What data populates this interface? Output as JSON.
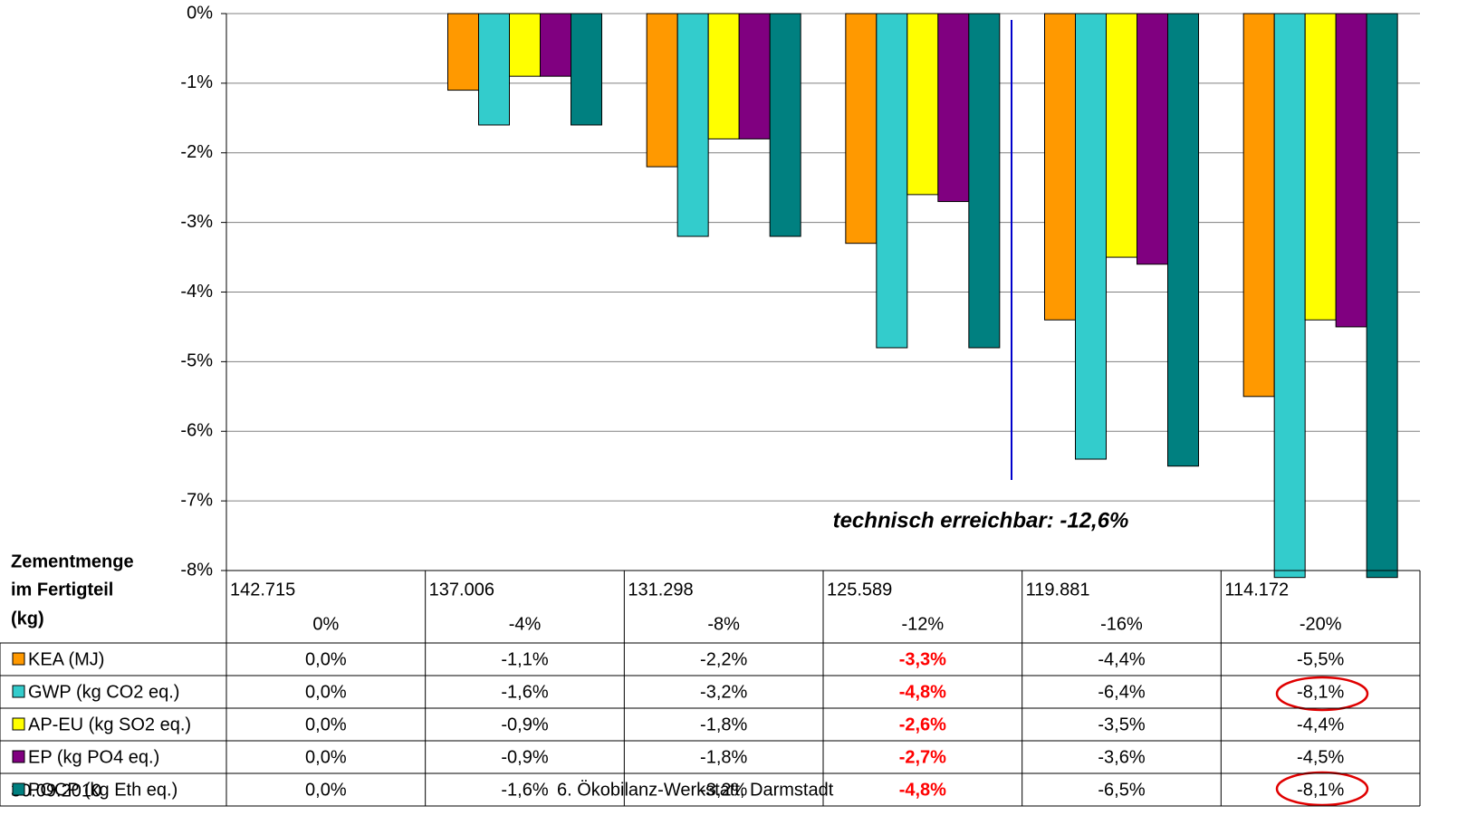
{
  "chart_data": {
    "type": "bar",
    "annotation": "technisch erreichbar: -12,6%",
    "row_header": [
      "Zementmenge",
      "im Fertigteil",
      "(kg)"
    ],
    "categories": [
      "142.715",
      "137.006",
      "131.298",
      "125.589",
      "119.881",
      "114.172"
    ],
    "category_sublabels": [
      "0%",
      "-4%",
      "-8%",
      "-12%",
      "-16%",
      "-20%"
    ],
    "ylim": [
      -8,
      0
    ],
    "yticks": [
      {
        "value": 0,
        "label": "0%"
      },
      {
        "value": -1,
        "label": "-1%"
      },
      {
        "value": -2,
        "label": "-2%"
      },
      {
        "value": -3,
        "label": "-3%"
      },
      {
        "value": -4,
        "label": "-4%"
      },
      {
        "value": -5,
        "label": "-5%"
      },
      {
        "value": -6,
        "label": "-6%"
      },
      {
        "value": -7,
        "label": "-7%"
      },
      {
        "value": -8,
        "label": "-8%"
      }
    ],
    "grid": true,
    "highlight": {
      "index": 3,
      "color": "#ff0000"
    },
    "series": [
      {
        "name": "KEA (MJ)",
        "color": "#ff9900",
        "values": [
          0,
          -1.1,
          -2.2,
          -3.3,
          -4.4,
          -5.5
        ],
        "value_labels": [
          "0,0%",
          "-1,1%",
          "-2,2%",
          "-3,3%",
          "-4,4%",
          "-5,5%"
        ]
      },
      {
        "name": "GWP (kg CO2 eq.)",
        "color": "#33cccc",
        "values": [
          0,
          -1.6,
          -3.2,
          -4.8,
          -6.4,
          -8.1
        ],
        "value_labels": [
          "0,0%",
          "-1,6%",
          "-3,2%",
          "-4,8%",
          "-6,4%",
          "-8,1%"
        ]
      },
      {
        "name": "AP-EU (kg SO2 eq.)",
        "color": "#ffff00",
        "values": [
          0,
          -0.9,
          -1.8,
          -2.6,
          -3.5,
          -4.4
        ],
        "value_labels": [
          "0,0%",
          "-0,9%",
          "-1,8%",
          "-2,6%",
          "-3,5%",
          "-4,4%"
        ]
      },
      {
        "name": "EP (kg PO4 eq.)",
        "color": "#800080",
        "values": [
          0,
          -0.9,
          -1.8,
          -2.7,
          -3.6,
          -4.5
        ],
        "value_labels": [
          "0,0%",
          "-0,9%",
          "-1,8%",
          "-2,7%",
          "-3,6%",
          "-4,5%"
        ]
      },
      {
        "name": "POCP (kg Eth eq.)",
        "color": "#008080",
        "values": [
          0,
          -1.6,
          -3.2,
          -4.8,
          -6.5,
          -8.1
        ],
        "value_labels": [
          "0,0%",
          "-1,6%",
          "-3,2%",
          "-4,8%",
          "-6,5%",
          "-8,1%"
        ]
      }
    ]
  },
  "footer": {
    "date": "30.09.2010",
    "event": "6. Ökobilanz-Werkstatt, Darmstadt"
  }
}
